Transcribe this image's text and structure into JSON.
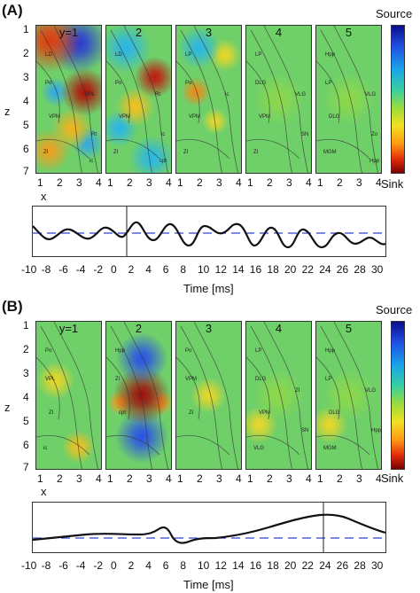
{
  "panels": [
    {
      "letter": "(A)",
      "map_titles": [
        "y=1",
        "2",
        "3",
        "4",
        "5"
      ],
      "z_axis_label": "z",
      "x_axis_label": "x",
      "z_ticks": [
        "1",
        "2",
        "3",
        "4",
        "5",
        "6",
        "7"
      ],
      "x_ticks": [
        "1",
        "2",
        "3",
        "4"
      ],
      "colorbar_top": "Source",
      "colorbar_bottom": "Sink",
      "time_label": "Time [ms]",
      "time_ticks": [
        "-10",
        "-8",
        "-6",
        "-4",
        "-2",
        "0",
        "2",
        "4",
        "6",
        "8",
        "10",
        "12",
        "14",
        "16",
        "18",
        "20",
        "22",
        "24",
        "26",
        "28",
        "30"
      ],
      "region_labels": [
        [
          "LD",
          "Po",
          "VPM",
          "ZI",
          "VPL",
          "Rt",
          "ic"
        ],
        [
          "LD",
          "Po",
          "VPM",
          "ZI",
          "Rt",
          "ic",
          "cpt"
        ],
        [
          "LP",
          "Po",
          "VPM",
          "ZI",
          "ic"
        ],
        [
          "LP",
          "DLG",
          "VPM",
          "ZI",
          "VLG",
          "SN"
        ],
        [
          "Hpp",
          "LP",
          "DLG",
          "MGM",
          "VLG",
          "Zo",
          "Hpp"
        ]
      ],
      "marker_label": "0",
      "trace_description": "oscillatory"
    },
    {
      "letter": "(B)",
      "map_titles": [
        "y=1",
        "2",
        "3",
        "4",
        "5"
      ],
      "z_axis_label": "z",
      "x_axis_label": "x",
      "z_ticks": [
        "1",
        "2",
        "3",
        "4",
        "5",
        "6",
        "7"
      ],
      "x_ticks": [
        "1",
        "2",
        "3",
        "4"
      ],
      "colorbar_top": "Source",
      "colorbar_bottom": "Sink",
      "time_label": "Time [ms]",
      "time_ticks": [
        "-10",
        "-8",
        "-6",
        "-4",
        "-2",
        "0",
        "2",
        "4",
        "6",
        "8",
        "10",
        "12",
        "14",
        "16",
        "18",
        "20",
        "22",
        "24",
        "26",
        "28",
        "30"
      ],
      "region_labels": [
        [
          "Po",
          "VPL",
          "ZI",
          "ic"
        ],
        [
          "Hpp",
          "ZI",
          "cpt"
        ],
        [
          "Po",
          "VPM",
          "ZI"
        ],
        [
          "LP",
          "DLG",
          "VPM",
          "VLG",
          "ZI",
          "SN"
        ],
        [
          "Hpp",
          "LP",
          "DLG",
          "MGM",
          "VLG",
          "Hpp"
        ]
      ],
      "trace_description": "slow"
    }
  ],
  "colors": {
    "map_bg": "#6fd06a",
    "dashed": "#3340d0",
    "trace": "#111111"
  }
}
